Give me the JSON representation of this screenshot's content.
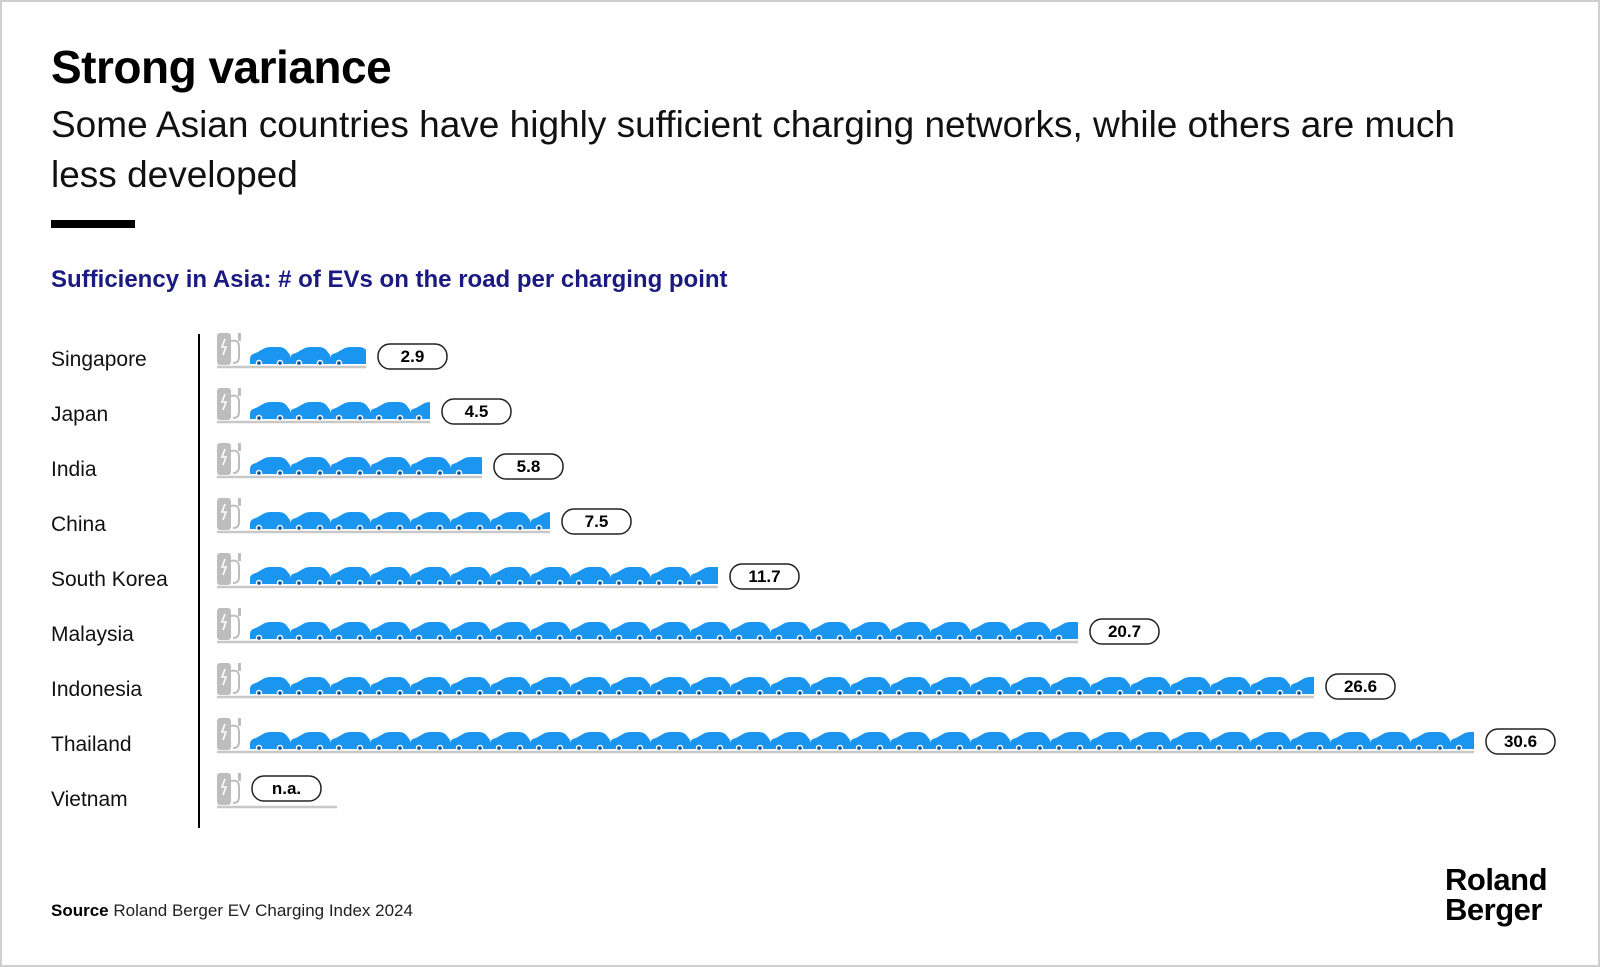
{
  "header": {
    "title": "Strong variance",
    "subtitle": "Some Asian countries have highly sufficient charging networks, while others are much less developed"
  },
  "chart_data": {
    "type": "bar",
    "title": "Sufficiency in Asia: # of EVs on the road per charging point",
    "categories": [
      "Singapore",
      "Japan",
      "India",
      "China",
      "South Korea",
      "Malaysia",
      "Indonesia",
      "Thailand",
      "Vietnam"
    ],
    "values": [
      2.9,
      4.5,
      5.8,
      7.5,
      11.7,
      20.7,
      26.6,
      30.6,
      null
    ],
    "value_labels": [
      "2.9",
      "4.5",
      "5.8",
      "7.5",
      "11.7",
      "20.7",
      "26.6",
      "30.6",
      "n.a."
    ],
    "colors": {
      "car": "#1a96f0",
      "charger": "#bdbdbd",
      "ground": "#c8c8c8",
      "axis": "#000000"
    },
    "icons": {
      "unit": "car-icon",
      "base": "charging-station-icon"
    }
  },
  "footer": {
    "source_label": "Source",
    "source_text": "Roland Berger EV Charging Index 2024",
    "brand_line1": "Roland",
    "brand_line2": "Berger"
  }
}
